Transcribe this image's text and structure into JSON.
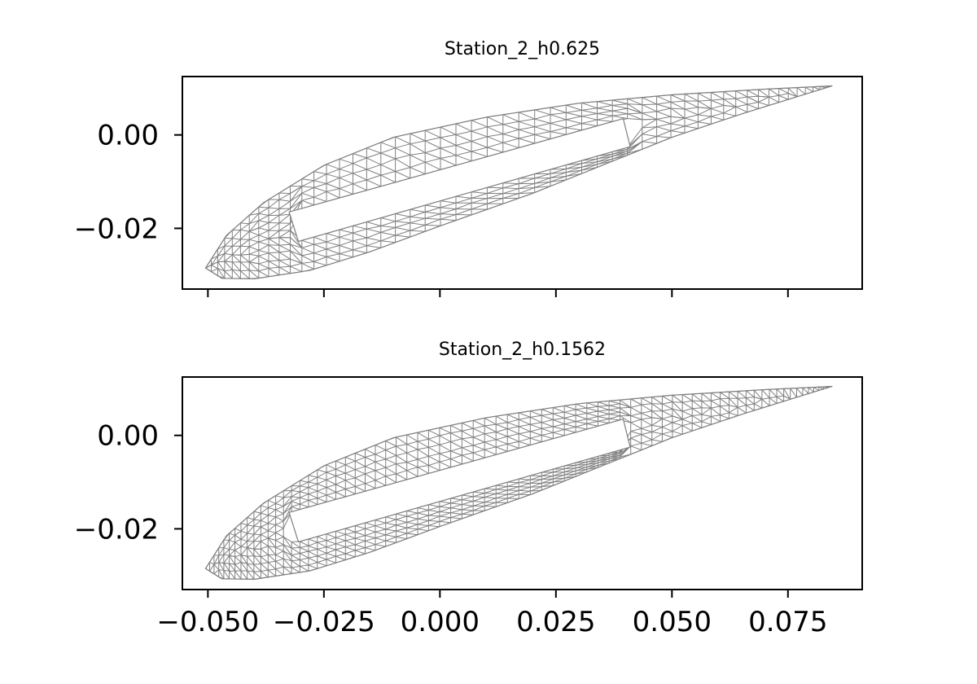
{
  "chart_data": [
    {
      "type": "mesh",
      "title": "Station_2_h0.625",
      "xlabel": "",
      "ylabel": "",
      "xlim": [
        -0.0555,
        0.091
      ],
      "ylim": [
        -0.033,
        0.0125
      ],
      "x_ticks": [
        -0.05,
        -0.025,
        0.0,
        0.025,
        0.05,
        0.075
      ],
      "x_tick_labels": [],
      "y_ticks": [
        0.0,
        -0.02
      ],
      "y_tick_labels": [
        "0.00",
        "−0.02"
      ],
      "grid": false,
      "mesh_color": "#808080",
      "outer_boundary": {
        "upper": [
          [
            -0.0505,
            -0.0285
          ],
          [
            -0.046,
            -0.0215
          ],
          [
            -0.038,
            -0.0145
          ],
          [
            -0.025,
            -0.0065
          ],
          [
            -0.01,
            -0.0005
          ],
          [
            0.01,
            0.0038
          ],
          [
            0.03,
            0.0068
          ],
          [
            0.05,
            0.0086
          ],
          [
            0.07,
            0.0098
          ],
          [
            0.0845,
            0.0105
          ]
        ],
        "lower": [
          [
            -0.0505,
            -0.0285
          ],
          [
            -0.047,
            -0.0307
          ],
          [
            -0.04,
            -0.0308
          ],
          [
            -0.028,
            -0.029
          ],
          [
            -0.015,
            -0.025
          ],
          [
            0.0,
            -0.0195
          ],
          [
            0.02,
            -0.0125
          ],
          [
            0.035,
            -0.0065
          ],
          [
            0.05,
            -0.0005
          ],
          [
            0.065,
            0.0045
          ],
          [
            0.078,
            0.0085
          ],
          [
            0.0845,
            0.0105
          ]
        ]
      },
      "inner_cavity": [
        [
          -0.0325,
          -0.0165
        ],
        [
          0.0395,
          0.0035
        ],
        [
          0.041,
          -0.0025
        ],
        [
          -0.0305,
          -0.0228
        ]
      ],
      "mesh_density": "coarse"
    },
    {
      "type": "mesh",
      "title": "Station_2_h0.1562",
      "xlabel": "",
      "ylabel": "",
      "xlim": [
        -0.0555,
        0.091
      ],
      "ylim": [
        -0.033,
        0.0125
      ],
      "x_ticks": [
        -0.05,
        -0.025,
        0.0,
        0.025,
        0.05,
        0.075
      ],
      "x_tick_labels": [
        "−0.050",
        "−0.025",
        "0.000",
        "0.025",
        "0.050",
        "0.075"
      ],
      "y_ticks": [
        0.0,
        -0.02
      ],
      "y_tick_labels": [
        "0.00",
        "−0.02"
      ],
      "grid": false,
      "mesh_color": "#808080",
      "outer_boundary": {
        "upper": [
          [
            -0.0505,
            -0.0285
          ],
          [
            -0.046,
            -0.0215
          ],
          [
            -0.038,
            -0.0145
          ],
          [
            -0.025,
            -0.0065
          ],
          [
            -0.01,
            -0.0005
          ],
          [
            0.01,
            0.0038
          ],
          [
            0.03,
            0.0068
          ],
          [
            0.05,
            0.0086
          ],
          [
            0.07,
            0.0098
          ],
          [
            0.0845,
            0.0105
          ]
        ],
        "lower": [
          [
            -0.0505,
            -0.0285
          ],
          [
            -0.047,
            -0.0307
          ],
          [
            -0.04,
            -0.0308
          ],
          [
            -0.028,
            -0.029
          ],
          [
            -0.015,
            -0.025
          ],
          [
            0.0,
            -0.0195
          ],
          [
            0.02,
            -0.0125
          ],
          [
            0.035,
            -0.0065
          ],
          [
            0.05,
            -0.0005
          ],
          [
            0.065,
            0.0045
          ],
          [
            0.078,
            0.0085
          ],
          [
            0.0845,
            0.0105
          ]
        ]
      },
      "inner_cavity": [
        [
          -0.0325,
          -0.0165
        ],
        [
          0.0395,
          0.0035
        ],
        [
          0.041,
          -0.0025
        ],
        [
          -0.0305,
          -0.0228
        ]
      ],
      "mesh_density": "fine"
    }
  ]
}
